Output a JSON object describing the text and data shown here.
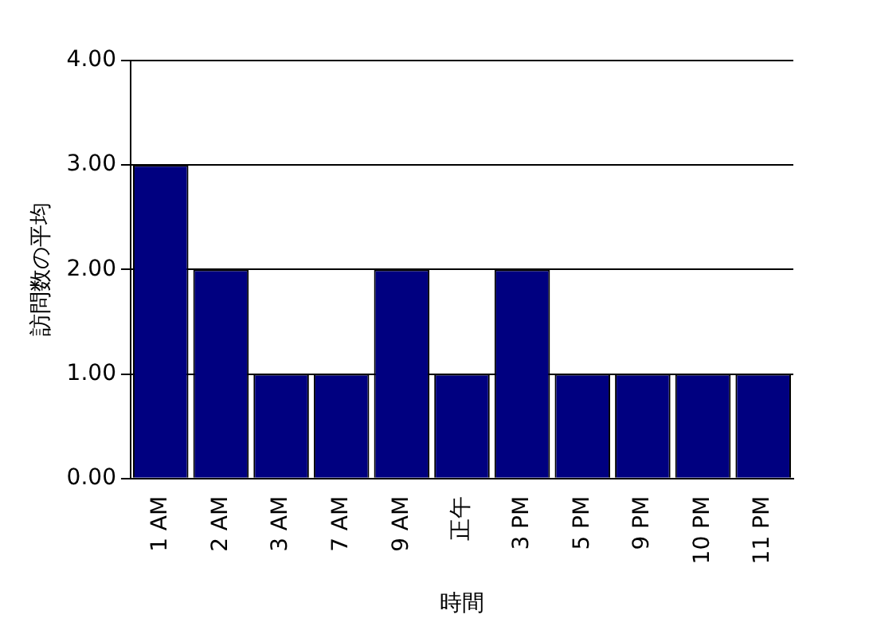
{
  "chart_data": {
    "type": "bar",
    "xlabel": "時間",
    "ylabel": "訪問数の平均",
    "categories": [
      "1 AM",
      "2 AM",
      "3 AM",
      "7 AM",
      "9 AM",
      "正午",
      "3 PM",
      "5 PM",
      "9 PM",
      "10 PM",
      "11 PM"
    ],
    "values": [
      3,
      2,
      1,
      1,
      2,
      1,
      2,
      1,
      1,
      1,
      1
    ],
    "color": "#000080",
    "ylim": [
      0,
      4
    ],
    "yticks": [
      {
        "value": 0,
        "label": "0.00"
      },
      {
        "value": 1,
        "label": "1.00"
      },
      {
        "value": 2,
        "label": "2.00"
      },
      {
        "value": 3,
        "label": "3.00"
      },
      {
        "value": 4,
        "label": "4.00"
      }
    ],
    "grid": "y"
  }
}
